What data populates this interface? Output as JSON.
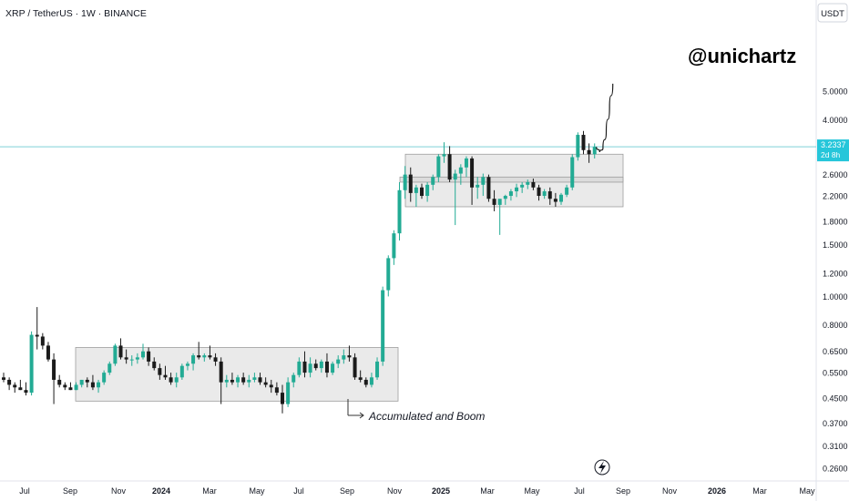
{
  "header": {
    "symbol": "XRP / TetherUS · 1W · BINANCE"
  },
  "watermark": {
    "text": "@unichartz"
  },
  "annotation": {
    "text": "Accumulated and Boom"
  },
  "price_axis": {
    "currency": "USDT",
    "current_price": "3.2337",
    "countdown": "2d 8h"
  },
  "colors": {
    "up": "#22ab94",
    "down": "#1b1b1b",
    "price_line": "#7fd0d7",
    "current_label_bg": "#26c6da",
    "box_fill": "#e8e8e8",
    "box_stroke": "#9e9e9e"
  },
  "icons": {
    "bottom": "lightning-icon"
  },
  "chart_data": {
    "type": "candlestick",
    "scale": "log",
    "title": "XRP / TetherUS · 1W · BINANCE",
    "y_ticks": [
      "5.0000",
      "4.0000",
      "3.2337",
      "2.6000",
      "2.2000",
      "1.8000",
      "1.5000",
      "1.2000",
      "1.0000",
      "0.8000",
      "0.6500",
      "0.5500",
      "0.4500",
      "0.3700",
      "0.3100",
      "0.2600"
    ],
    "x_ticks": [
      "Jul",
      "Sep",
      "Nov",
      "2024",
      "Mar",
      "May",
      "Jul",
      "Sep",
      "Nov",
      "2025",
      "Mar",
      "May",
      "Jul",
      "Sep",
      "Nov",
      "2026",
      "Mar",
      "May"
    ],
    "y_range": [
      0.25,
      5.6
    ],
    "current_price": 3.2337,
    "zones": [
      {
        "label": "Accumulated and Boom",
        "low": 0.44,
        "high": 0.67
      },
      {
        "label": "",
        "low": 2.02,
        "high": 3.05
      },
      {
        "label": "",
        "low": 2.45,
        "high": 2.55
      }
    ],
    "candles": [
      [
        0.53,
        0.55,
        0.51,
        0.52
      ],
      [
        0.52,
        0.53,
        0.48,
        0.5
      ],
      [
        0.5,
        0.51,
        0.47,
        0.49
      ],
      [
        0.49,
        0.52,
        0.48,
        0.48
      ],
      [
        0.48,
        0.51,
        0.46,
        0.47
      ],
      [
        0.47,
        0.76,
        0.46,
        0.74
      ],
      [
        0.74,
        0.92,
        0.66,
        0.73
      ],
      [
        0.73,
        0.75,
        0.66,
        0.68
      ],
      [
        0.68,
        0.7,
        0.6,
        0.61
      ],
      [
        0.61,
        0.64,
        0.43,
        0.52
      ],
      [
        0.52,
        0.54,
        0.49,
        0.5
      ],
      [
        0.5,
        0.51,
        0.48,
        0.49
      ],
      [
        0.49,
        0.51,
        0.48,
        0.48
      ],
      [
        0.48,
        0.51,
        0.48,
        0.5
      ],
      [
        0.5,
        0.52,
        0.49,
        0.52
      ],
      [
        0.52,
        0.53,
        0.49,
        0.51
      ],
      [
        0.51,
        0.54,
        0.48,
        0.49
      ],
      [
        0.49,
        0.52,
        0.47,
        0.51
      ],
      [
        0.51,
        0.56,
        0.5,
        0.55
      ],
      [
        0.55,
        0.6,
        0.54,
        0.59
      ],
      [
        0.59,
        0.69,
        0.58,
        0.68
      ],
      [
        0.68,
        0.72,
        0.61,
        0.62
      ],
      [
        0.62,
        0.66,
        0.59,
        0.61
      ],
      [
        0.61,
        0.63,
        0.58,
        0.61
      ],
      [
        0.61,
        0.64,
        0.59,
        0.62
      ],
      [
        0.62,
        0.69,
        0.61,
        0.65
      ],
      [
        0.65,
        0.67,
        0.58,
        0.6
      ],
      [
        0.6,
        0.62,
        0.56,
        0.57
      ],
      [
        0.57,
        0.59,
        0.52,
        0.54
      ],
      [
        0.54,
        0.58,
        0.52,
        0.53
      ],
      [
        0.53,
        0.55,
        0.5,
        0.51
      ],
      [
        0.51,
        0.55,
        0.49,
        0.53
      ],
      [
        0.53,
        0.59,
        0.52,
        0.58
      ],
      [
        0.58,
        0.6,
        0.56,
        0.59
      ],
      [
        0.59,
        0.64,
        0.56,
        0.63
      ],
      [
        0.63,
        0.7,
        0.61,
        0.62
      ],
      [
        0.62,
        0.64,
        0.6,
        0.63
      ],
      [
        0.63,
        0.68,
        0.61,
        0.62
      ],
      [
        0.62,
        0.64,
        0.58,
        0.6
      ],
      [
        0.6,
        0.62,
        0.43,
        0.51
      ],
      [
        0.51,
        0.54,
        0.49,
        0.52
      ],
      [
        0.52,
        0.55,
        0.5,
        0.51
      ],
      [
        0.51,
        0.54,
        0.49,
        0.53
      ],
      [
        0.53,
        0.55,
        0.5,
        0.51
      ],
      [
        0.51,
        0.54,
        0.49,
        0.52
      ],
      [
        0.52,
        0.55,
        0.51,
        0.53
      ],
      [
        0.53,
        0.55,
        0.5,
        0.51
      ],
      [
        0.51,
        0.53,
        0.49,
        0.5
      ],
      [
        0.5,
        0.52,
        0.47,
        0.49
      ],
      [
        0.49,
        0.51,
        0.46,
        0.47
      ],
      [
        0.47,
        0.5,
        0.4,
        0.43
      ],
      [
        0.43,
        0.53,
        0.42,
        0.51
      ],
      [
        0.51,
        0.55,
        0.49,
        0.54
      ],
      [
        0.54,
        0.62,
        0.53,
        0.6
      ],
      [
        0.6,
        0.65,
        0.53,
        0.55
      ],
      [
        0.55,
        0.62,
        0.53,
        0.59
      ],
      [
        0.59,
        0.61,
        0.56,
        0.57
      ],
      [
        0.57,
        0.61,
        0.55,
        0.6
      ],
      [
        0.6,
        0.64,
        0.53,
        0.55
      ],
      [
        0.55,
        0.6,
        0.54,
        0.59
      ],
      [
        0.59,
        0.63,
        0.57,
        0.61
      ],
      [
        0.61,
        0.66,
        0.59,
        0.63
      ],
      [
        0.63,
        0.68,
        0.6,
        0.62
      ],
      [
        0.62,
        0.64,
        0.52,
        0.53
      ],
      [
        0.53,
        0.56,
        0.51,
        0.52
      ],
      [
        0.52,
        0.53,
        0.49,
        0.5
      ],
      [
        0.5,
        0.55,
        0.49,
        0.53
      ],
      [
        0.53,
        0.62,
        0.52,
        0.6
      ],
      [
        0.6,
        1.08,
        0.58,
        1.05
      ],
      [
        1.05,
        1.38,
        1.0,
        1.35
      ],
      [
        1.35,
        1.68,
        1.28,
        1.64
      ],
      [
        1.64,
        2.45,
        1.55,
        2.3
      ],
      [
        2.3,
        2.78,
        2.15,
        2.6
      ],
      [
        2.6,
        2.75,
        2.1,
        2.25
      ],
      [
        2.25,
        2.4,
        2.02,
        2.35
      ],
      [
        2.35,
        2.42,
        2.15,
        2.2
      ],
      [
        2.2,
        2.45,
        2.1,
        2.4
      ],
      [
        2.4,
        2.6,
        2.3,
        2.55
      ],
      [
        2.55,
        3.05,
        2.45,
        3.0
      ],
      [
        3.0,
        3.35,
        2.85,
        3.05
      ],
      [
        3.05,
        3.25,
        2.45,
        2.5
      ],
      [
        2.5,
        2.7,
        1.75,
        2.62
      ],
      [
        2.62,
        2.82,
        2.4,
        2.75
      ],
      [
        2.75,
        3.0,
        2.55,
        2.95
      ],
      [
        2.95,
        3.0,
        2.05,
        2.35
      ],
      [
        2.35,
        2.55,
        2.15,
        2.4
      ],
      [
        2.4,
        2.62,
        2.2,
        2.55
      ],
      [
        2.55,
        2.6,
        2.1,
        2.15
      ],
      [
        2.15,
        2.3,
        1.95,
        2.05
      ],
      [
        2.05,
        2.12,
        1.62,
        2.15
      ],
      [
        2.15,
        2.22,
        2.05,
        2.2
      ],
      [
        2.2,
        2.32,
        2.12,
        2.28
      ],
      [
        2.28,
        2.42,
        2.18,
        2.35
      ],
      [
        2.35,
        2.45,
        2.25,
        2.4
      ],
      [
        2.4,
        2.5,
        2.32,
        2.45
      ],
      [
        2.45,
        2.52,
        2.3,
        2.35
      ],
      [
        2.35,
        2.4,
        2.12,
        2.2
      ],
      [
        2.2,
        2.32,
        2.15,
        2.28
      ],
      [
        2.28,
        2.35,
        2.05,
        2.15
      ],
      [
        2.15,
        2.25,
        2.02,
        2.1
      ],
      [
        2.1,
        2.25,
        2.05,
        2.22
      ],
      [
        2.22,
        2.4,
        2.18,
        2.35
      ],
      [
        2.35,
        3.05,
        2.3,
        2.98
      ],
      [
        2.98,
        3.62,
        2.9,
        3.55
      ],
      [
        3.55,
        3.66,
        3.05,
        3.15
      ],
      [
        3.15,
        3.32,
        2.85,
        3.05
      ],
      [
        3.05,
        3.32,
        2.95,
        3.23
      ]
    ],
    "projection": [
      3.23,
      3.1,
      3.2,
      3.65,
      4.4,
      5.3
    ]
  }
}
